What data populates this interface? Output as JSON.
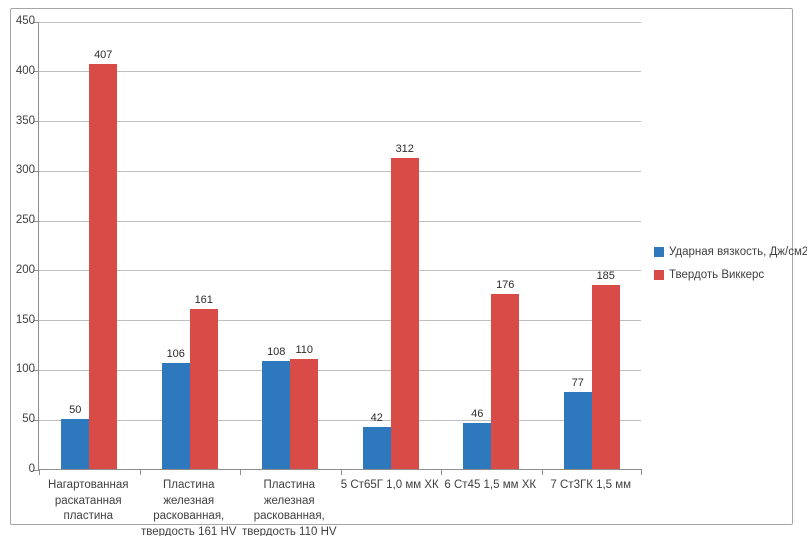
{
  "chart_data": {
    "type": "bar",
    "title": "",
    "xlabel": "",
    "ylabel": "",
    "categories": [
      "Нагартованная\nраскатанная\nпластина",
      "Пластина железная\nраскованная,\nтвердость 161 HV",
      "Пластина железная\nраскованная,\nтвердость 110 HV",
      "5 Ст65Г 1,0 мм ХК",
      "6 Ст45 1,5 мм ХК",
      "7 Ст3ГК 1,5 мм"
    ],
    "series": [
      {
        "name": "Ударная вязкость, Дж/см2",
        "color": "#2e79be",
        "values": [
          50,
          106,
          108,
          42,
          46,
          77
        ]
      },
      {
        "name": "Твердоть Виккерс",
        "color": "#d94b47",
        "values": [
          407,
          161,
          110,
          312,
          176,
          185
        ]
      }
    ],
    "ylim": [
      0,
      450
    ],
    "ytick_step": 50,
    "grid": true,
    "legend_position": "right",
    "data_labels": true
  },
  "colors": {
    "grid": "#bfbfbf",
    "axis": "#8e8e8e",
    "tick_text": "#3f3f3f",
    "data_label_text": "#2b2b2b",
    "frame_border": "#a6a6a6",
    "background": "#ffffff"
  }
}
